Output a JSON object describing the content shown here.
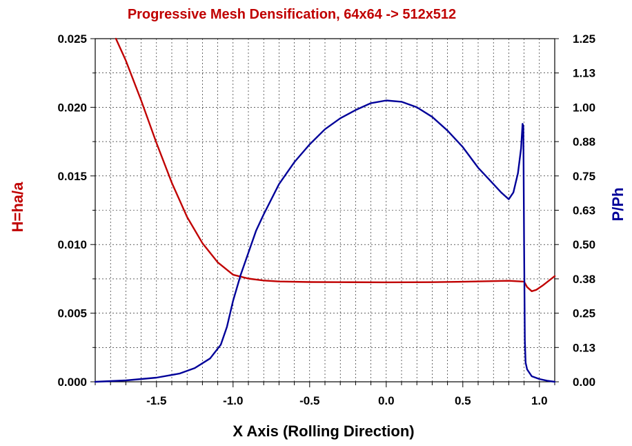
{
  "chart_data": {
    "type": "line",
    "title": "Progressive Mesh Densification, 64x64 -> 512x512",
    "xlabel": "X Axis (Rolling Direction)",
    "ylabel_left": "H=ha/a",
    "ylabel_right": "P/Ph",
    "xlim": [
      -1.9,
      1.1
    ],
    "ylim_left": [
      0.0,
      0.025
    ],
    "ylim_right": [
      0.0,
      1.25
    ],
    "grid": true,
    "x_ticks": [
      "-1.5",
      "-1.0",
      "-0.5",
      "0.0",
      "0.5",
      "1.0"
    ],
    "x_tick_values": [
      -1.5,
      -1.0,
      -0.5,
      0.0,
      0.5,
      1.0
    ],
    "y_left_ticks": [
      "0.000",
      "0.005",
      "0.010",
      "0.015",
      "0.020",
      "0.025"
    ],
    "y_left_tick_values": [
      0.0,
      0.005,
      0.01,
      0.015,
      0.02,
      0.025
    ],
    "y_right_ticks": [
      "0.00",
      "0.13",
      "0.25",
      "0.38",
      "0.50",
      "0.63",
      "0.75",
      "0.88",
      "1.00",
      "1.13",
      "1.25"
    ],
    "y_right_tick_values": [
      0.0,
      0.125,
      0.25,
      0.375,
      0.5,
      0.625,
      0.75,
      0.875,
      1.0,
      1.125,
      1.25
    ],
    "colors": {
      "left_series": "#c00000",
      "right_series": "#000099",
      "title": "#c00000",
      "grid": "#000000"
    },
    "series": [
      {
        "axis": "left",
        "x": [
          -1.765,
          -1.7,
          -1.6,
          -1.5,
          -1.4,
          -1.3,
          -1.2,
          -1.1,
          -1.0,
          -0.9,
          -0.8,
          -0.7,
          -0.5,
          -0.3,
          0.0,
          0.3,
          0.5,
          0.8,
          0.9,
          0.92,
          0.95,
          0.98,
          1.02,
          1.1
        ],
        "y": [
          0.025,
          0.0234,
          0.0205,
          0.0174,
          0.0145,
          0.012,
          0.0101,
          0.0087,
          0.0078,
          0.00752,
          0.00738,
          0.00731,
          0.00727,
          0.00726,
          0.00725,
          0.00726,
          0.00729,
          0.00736,
          0.0073,
          0.0069,
          0.0066,
          0.0067,
          0.007,
          0.0077
        ]
      },
      {
        "axis": "right",
        "x": [
          -1.9,
          -1.7,
          -1.5,
          -1.35,
          -1.25,
          -1.15,
          -1.08,
          -1.04,
          -1.0,
          -0.95,
          -0.9,
          -0.85,
          -0.8,
          -0.7,
          -0.6,
          -0.5,
          -0.4,
          -0.3,
          -0.2,
          -0.1,
          0.0,
          0.1,
          0.2,
          0.3,
          0.4,
          0.5,
          0.6,
          0.7,
          0.75,
          0.8,
          0.83,
          0.86,
          0.88,
          0.89,
          0.895,
          0.9,
          0.905,
          0.91,
          0.92,
          0.95,
          1.0,
          1.05,
          1.1
        ],
        "y": [
          0.0,
          0.005,
          0.015,
          0.03,
          0.05,
          0.085,
          0.135,
          0.2,
          0.295,
          0.39,
          0.47,
          0.55,
          0.61,
          0.72,
          0.8,
          0.865,
          0.92,
          0.96,
          0.99,
          1.015,
          1.025,
          1.02,
          1.0,
          0.965,
          0.915,
          0.855,
          0.78,
          0.72,
          0.69,
          0.665,
          0.69,
          0.76,
          0.85,
          0.94,
          0.93,
          0.5,
          0.15,
          0.07,
          0.045,
          0.02,
          0.01,
          0.004,
          0.0
        ]
      }
    ]
  }
}
